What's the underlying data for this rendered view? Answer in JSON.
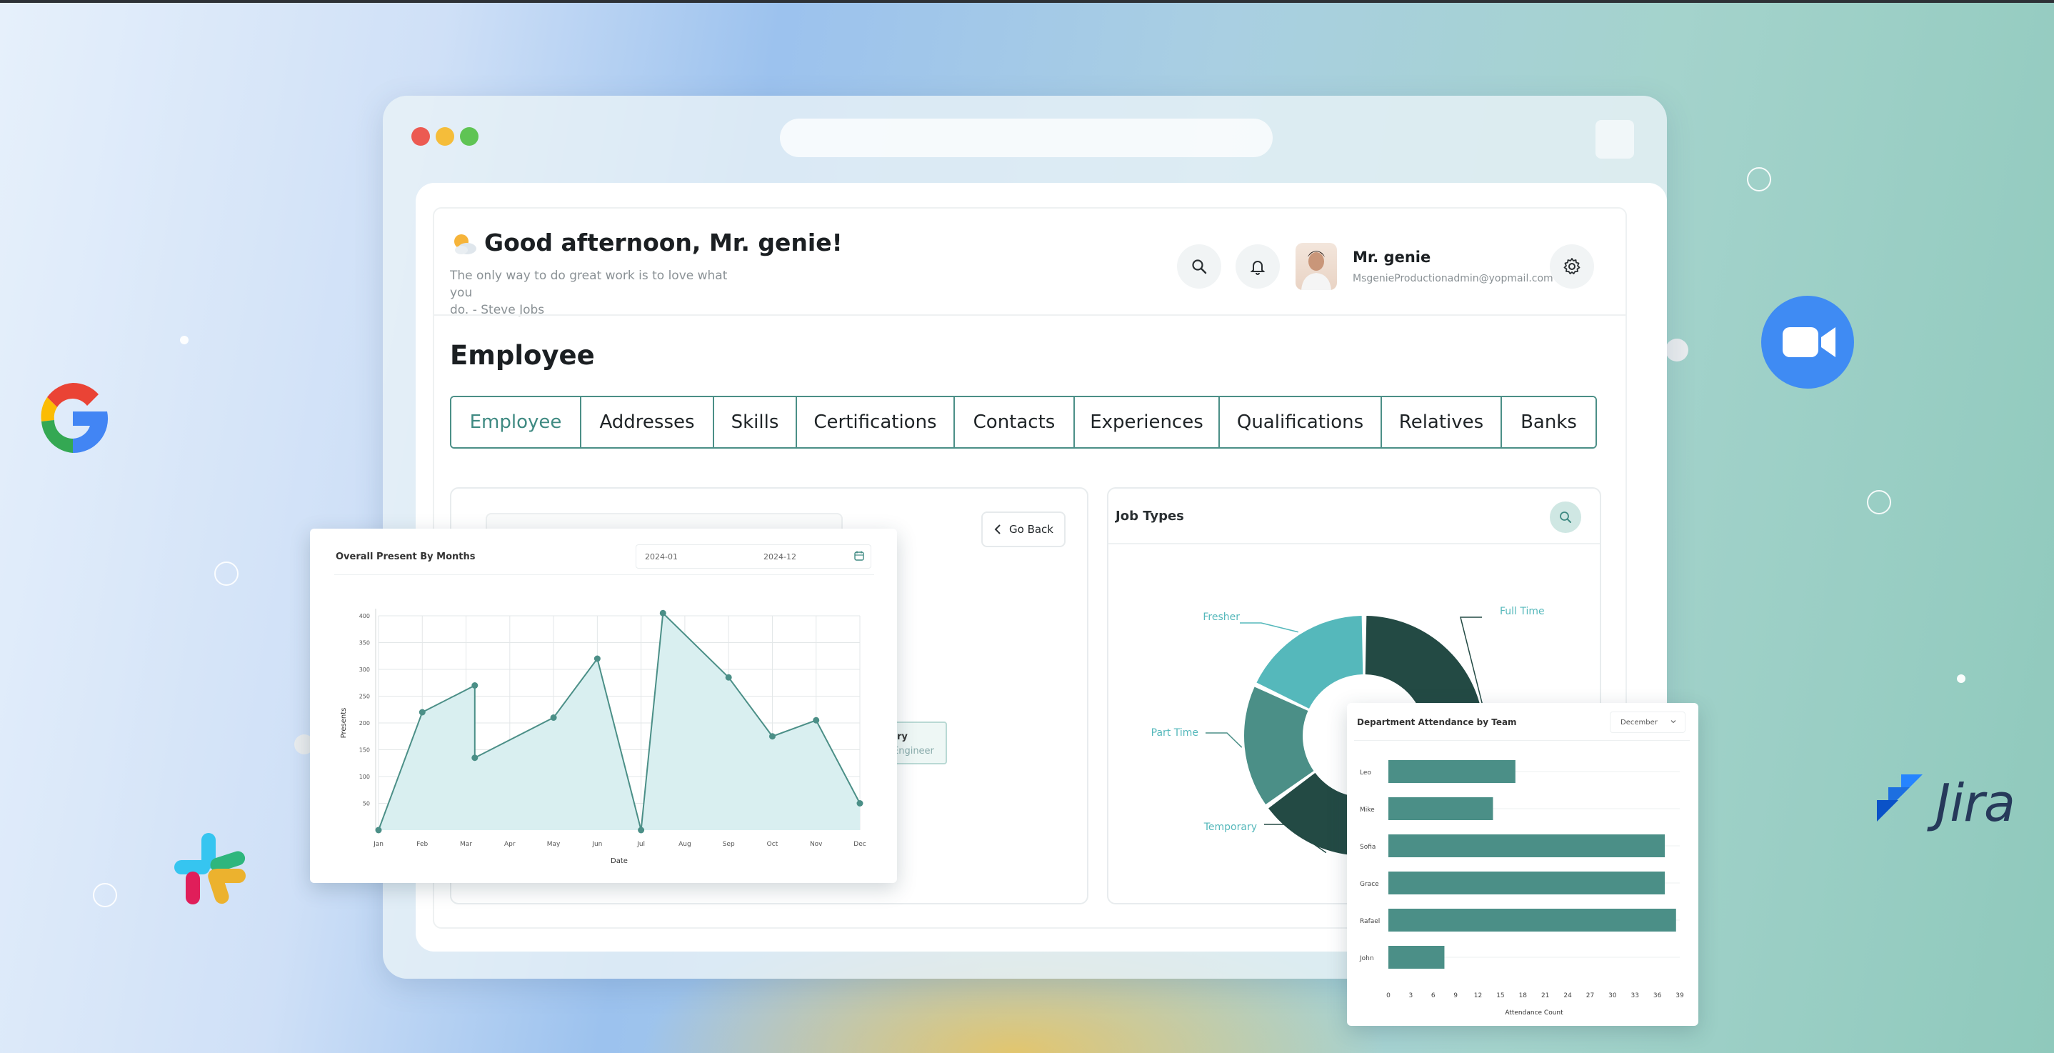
{
  "header": {
    "greeting": "Good afternoon, Mr. genie!",
    "weather_icon": "sun-cloud-icon",
    "quote_line1": "The only way to do great work is to love what you",
    "quote_line2": "do. - Steve Jobs"
  },
  "user": {
    "name": "Mr. genie",
    "email": "MsgenieProductionadmin@yopmail.com"
  },
  "page": {
    "title": "Employee"
  },
  "tabs": [
    {
      "label": "Employee",
      "active": true
    },
    {
      "label": "Addresses"
    },
    {
      "label": "Skills"
    },
    {
      "label": "Certifications"
    },
    {
      "label": "Contacts"
    },
    {
      "label": "Experiences"
    },
    {
      "label": "Qualifications"
    },
    {
      "label": "Relatives"
    },
    {
      "label": "Banks"
    }
  ],
  "employee_card": {
    "go_back_label": "Go Back",
    "tooltip_line1": "ry",
    "tooltip_line2": "Engineer"
  },
  "job_types": {
    "title": "Job Types"
  },
  "area_card": {
    "title": "Overall Present By Months",
    "date_from": "2024-01",
    "date_to": "2024-12"
  },
  "bar_card": {
    "title": "Department Attendance by Team",
    "selected_month": "December"
  },
  "colors": {
    "accent": "#3f8a82",
    "teal_dark": "#234a44",
    "teal_mid": "#4b8f87",
    "teal_light": "#55b8bb",
    "area_fill": "#d9eff0"
  },
  "chart_data": [
    {
      "type": "area",
      "title": "Overall Present By Months",
      "xlabel": "Date",
      "ylabel": "Presents",
      "x": [
        "Jan",
        "Feb",
        "Mar",
        "Mar",
        "May",
        "Jun",
        "Jul",
        "Jul",
        "Sep",
        "Oct",
        "Nov",
        "Dec"
      ],
      "tick_labels": [
        "Jan",
        "Feb",
        "Mar",
        "Apr",
        "May",
        "Jun",
        "Jul",
        "Aug",
        "Sep",
        "Oct",
        "Nov",
        "Dec"
      ],
      "x_positions": [
        0,
        1,
        2.2,
        2.2,
        4,
        5,
        6,
        6.5,
        8,
        9,
        10,
        11
      ],
      "values": [
        0,
        220,
        270,
        135,
        210,
        320,
        0,
        405,
        285,
        175,
        205,
        50
      ],
      "ylim": [
        0,
        400
      ],
      "yticks": [
        50,
        100,
        150,
        200,
        250,
        300,
        350,
        400
      ],
      "grid": true
    },
    {
      "type": "bar",
      "orientation": "horizontal",
      "title": "Department Attendance by Team",
      "xlabel": "Attendance Count",
      "categories": [
        "Leo",
        "Mike",
        "Sofia",
        "Grace",
        "Rafael",
        "John"
      ],
      "values": [
        17,
        14,
        37,
        37,
        38.5,
        7.5
      ],
      "xlim": [
        0,
        39
      ],
      "xticks": [
        0,
        3,
        6,
        9,
        12,
        15,
        18,
        21,
        24,
        27,
        30,
        33,
        36,
        39
      ]
    },
    {
      "type": "pie",
      "title": "Job Types",
      "donut": true,
      "labels": [
        "Full Time",
        "Temporary",
        "Part Time",
        "Fresher"
      ],
      "values": [
        45,
        20,
        17,
        18
      ],
      "colors": [
        "#234a44",
        "#234a44",
        "#4b8f87",
        "#55b8bb"
      ]
    }
  ]
}
